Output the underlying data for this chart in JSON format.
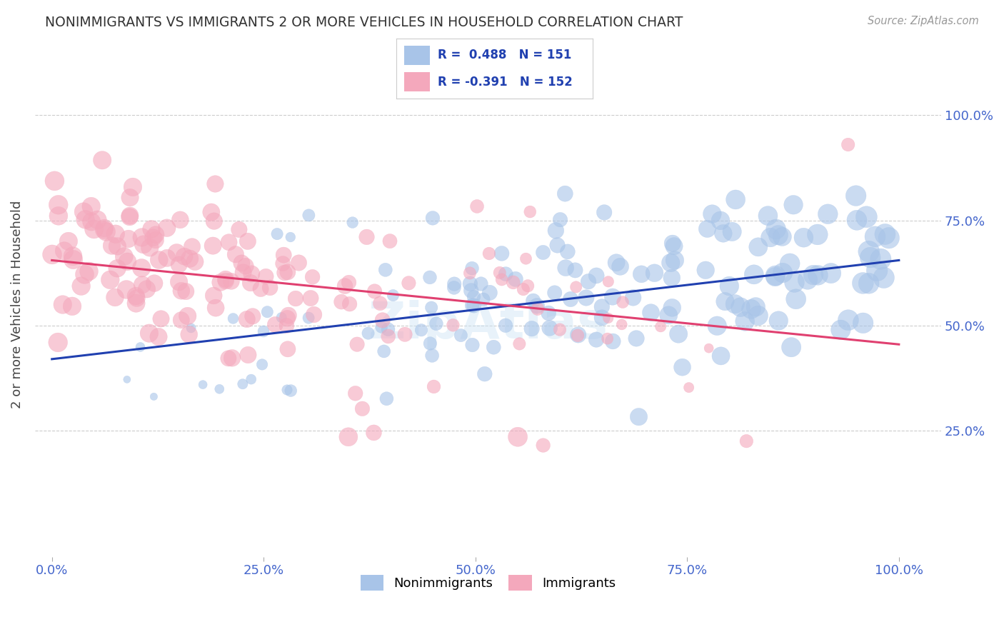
{
  "title": "NONIMMIGRANTS VS IMMIGRANTS 2 OR MORE VEHICLES IN HOUSEHOLD CORRELATION CHART",
  "source": "Source: ZipAtlas.com",
  "ylabel": "2 or more Vehicles in Household",
  "xlabel": "",
  "nonimmigrant_R": 0.488,
  "nonimmigrant_N": 151,
  "immigrant_R": -0.391,
  "immigrant_N": 152,
  "blue_color": "#a8c4e8",
  "pink_color": "#f4a8bc",
  "blue_line_color": "#2040b0",
  "pink_line_color": "#e04070",
  "legend_label_1": "Nonimmigrants",
  "legend_label_2": "Immigrants",
  "xlim": [
    -0.02,
    1.05
  ],
  "ylim": [
    -0.05,
    1.15
  ],
  "xtick_labels": [
    "0.0%",
    "25.0%",
    "50.0%",
    "75.0%",
    "100.0%"
  ],
  "xtick_pos": [
    0.0,
    0.25,
    0.5,
    0.75,
    1.0
  ],
  "ytick_labels": [
    "25.0%",
    "50.0%",
    "75.0%",
    "100.0%"
  ],
  "ytick_pos": [
    0.25,
    0.5,
    0.75,
    1.0
  ],
  "blue_trend_start": 0.42,
  "blue_trend_end": 0.655,
  "pink_trend_start": 0.655,
  "pink_trend_end": 0.455,
  "title_color": "#333333",
  "axis_label_color": "#444444",
  "tick_color": "#4466cc",
  "background_color": "#ffffff",
  "grid_color": "#cccccc"
}
